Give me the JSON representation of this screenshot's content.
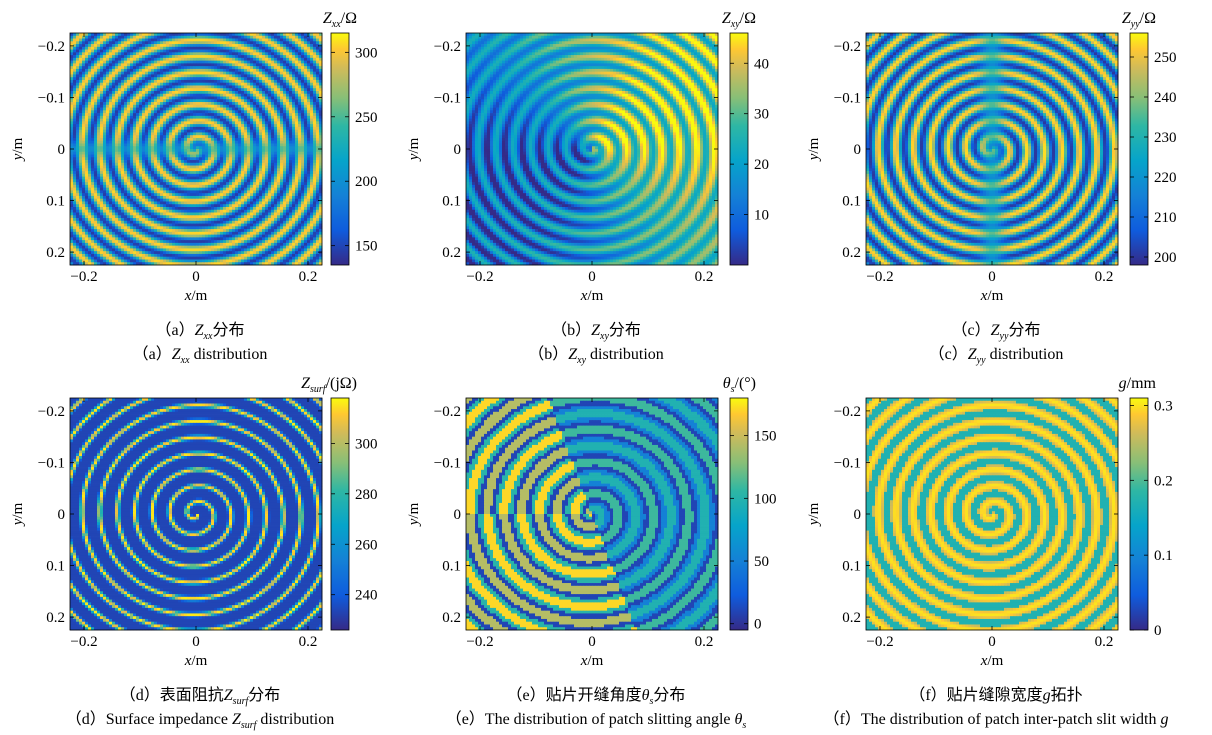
{
  "chart_data": [
    {
      "type": "heatmap",
      "colorbar_title": {
        "base": "Z",
        "sub": "xx",
        "suffix": "/Ω"
      },
      "xlabel": {
        "italic": "x",
        "suffix": "/m"
      },
      "ylabel": {
        "italic": "y",
        "suffix": "/m"
      },
      "xlim": [
        -0.225,
        0.225
      ],
      "ylim": [
        -0.225,
        0.225
      ],
      "y_reversed": true,
      "xticks": [
        -0.2,
        0,
        0.2
      ],
      "xtick_labels": [
        "−0.2",
        "0",
        "0.2"
      ],
      "yticks": [
        -0.2,
        -0.1,
        0,
        0.1,
        0.2
      ],
      "ytick_labels": [
        "−0.2",
        "−0.1",
        "0",
        "0.1",
        "0.2"
      ],
      "clim": [
        135,
        315
      ],
      "cticks": [
        150,
        200,
        250,
        300
      ],
      "ctick_labels": [
        "150",
        "200",
        "250",
        "300"
      ],
      "pattern": "spiral",
      "caption_cn": {
        "pre": "（a）",
        "base": "Z",
        "sub": "xx",
        "post": "分布"
      },
      "caption_en": {
        "pre": "（a）",
        "base": "Z",
        "sub": "xx",
        "post": " distribution"
      }
    },
    {
      "type": "heatmap",
      "colorbar_title": {
        "base": "Z",
        "sub": "xy",
        "suffix": "/Ω"
      },
      "xlabel": {
        "italic": "x",
        "suffix": "/m"
      },
      "ylabel": {
        "italic": "y",
        "suffix": "/m"
      },
      "xlim": [
        -0.225,
        0.225
      ],
      "ylim": [
        -0.225,
        0.225
      ],
      "y_reversed": true,
      "xticks": [
        -0.2,
        0,
        0.2
      ],
      "xtick_labels": [
        "−0.2",
        "0",
        "0.2"
      ],
      "yticks": [
        -0.2,
        -0.1,
        0,
        0.1,
        0.2
      ],
      "ytick_labels": [
        "−0.2",
        "−0.1",
        "0",
        "0.1",
        "0.2"
      ],
      "clim": [
        0,
        46
      ],
      "cticks": [
        10,
        20,
        30,
        40
      ],
      "ctick_labels": [
        "10",
        "20",
        "30",
        "40"
      ],
      "pattern": "spiral-angle",
      "caption_cn": {
        "pre": "（b）",
        "base": "Z",
        "sub": "xy",
        "post": "分布"
      },
      "caption_en": {
        "pre": "（b）",
        "base": "Z",
        "sub": "xy",
        "post": " distribution"
      }
    },
    {
      "type": "heatmap",
      "colorbar_title": {
        "base": "Z",
        "sub": "yy",
        "suffix": "/Ω"
      },
      "xlabel": {
        "italic": "x",
        "suffix": "/m"
      },
      "ylabel": {
        "italic": "y",
        "suffix": "/m"
      },
      "xlim": [
        -0.225,
        0.225
      ],
      "ylim": [
        -0.225,
        0.225
      ],
      "y_reversed": true,
      "xticks": [
        -0.2,
        0,
        0.2
      ],
      "xtick_labels": [
        "−0.2",
        "0",
        "0.2"
      ],
      "yticks": [
        -0.2,
        -0.1,
        0,
        0.1,
        0.2
      ],
      "ytick_labels": [
        "−0.2",
        "−0.1",
        "0",
        "0.1",
        "0.2"
      ],
      "clim": [
        198,
        256
      ],
      "cticks": [
        200,
        210,
        220,
        230,
        240,
        250
      ],
      "ctick_labels": [
        "200",
        "210",
        "220",
        "230",
        "240",
        "250"
      ],
      "pattern": "spiral-vertical",
      "caption_cn": {
        "pre": "（c）",
        "base": "Z",
        "sub": "yy",
        "post": "分布"
      },
      "caption_en": {
        "pre": "（c）",
        "base": "Z",
        "sub": "yy",
        "post": " distribution"
      }
    },
    {
      "type": "heatmap",
      "colorbar_title": {
        "base": "Z",
        "sub": "surf",
        "suffix": "/(jΩ)"
      },
      "xlabel": {
        "italic": "x",
        "suffix": "/m"
      },
      "ylabel": {
        "italic": "y",
        "suffix": "/m"
      },
      "xlim": [
        -0.225,
        0.225
      ],
      "ylim": [
        -0.225,
        0.225
      ],
      "y_reversed": true,
      "xticks": [
        -0.2,
        0,
        0.2
      ],
      "xtick_labels": [
        "−0.2",
        "0",
        "0.2"
      ],
      "yticks": [
        -0.2,
        -0.1,
        0,
        0.1,
        0.2
      ],
      "ytick_labels": [
        "−0.2",
        "−0.1",
        "0",
        "0.1",
        "0.2"
      ],
      "clim": [
        226,
        318
      ],
      "cticks": [
        240,
        260,
        280,
        300
      ],
      "ctick_labels": [
        "240",
        "260",
        "280",
        "300"
      ],
      "pattern": "spiral-thin",
      "caption_cn": {
        "pre": "（d）表面阻抗",
        "base": "Z",
        "sub": "surf",
        "post": "分布"
      },
      "caption_en": {
        "pre": "（d）Surface impedance ",
        "base": "Z",
        "sub": "surf",
        "post": " distribution"
      }
    },
    {
      "type": "heatmap",
      "colorbar_title": {
        "base": "θ",
        "sub": "s",
        "suffix": "/(°)"
      },
      "xlabel": {
        "italic": "x",
        "suffix": "/m"
      },
      "ylabel": {
        "italic": "y",
        "suffix": "/m"
      },
      "xlim": [
        -0.225,
        0.225
      ],
      "ylim": [
        -0.225,
        0.225
      ],
      "y_reversed": true,
      "xticks": [
        -0.2,
        0,
        0.2
      ],
      "xtick_labels": [
        "−0.2",
        "0",
        "0.2"
      ],
      "yticks": [
        -0.2,
        -0.1,
        0,
        0.1,
        0.2
      ],
      "ytick_labels": [
        "−0.2",
        "−0.1",
        "0",
        "0.1",
        "0.2"
      ],
      "clim": [
        -5,
        180
      ],
      "cticks": [
        0,
        50,
        100,
        150
      ],
      "ctick_labels": [
        "0",
        "50",
        "100",
        "150"
      ],
      "pattern": "quantized-angle",
      "caption_cn": {
        "pre": "（e）贴片开缝角度",
        "base": "θ",
        "sub": "s",
        "post": "分布"
      },
      "caption_en": {
        "pre": "（e）The distribution of patch slitting angle ",
        "base": "θ",
        "sub": "s",
        "post": ""
      }
    },
    {
      "type": "heatmap",
      "colorbar_title": {
        "base": "g",
        "sub": "",
        "suffix": "/mm"
      },
      "xlabel": {
        "italic": "x",
        "suffix": "/m"
      },
      "ylabel": {
        "italic": "y",
        "suffix": "/m"
      },
      "xlim": [
        -0.225,
        0.225
      ],
      "ylim": [
        -0.225,
        0.225
      ],
      "y_reversed": true,
      "xticks": [
        -0.2,
        0,
        0.2
      ],
      "xtick_labels": [
        "−0.2",
        "0",
        "0.2"
      ],
      "yticks": [
        -0.2,
        -0.1,
        0,
        0.1,
        0.2
      ],
      "ytick_labels": [
        "−0.2",
        "−0.1",
        "0",
        "0.1",
        "0.2"
      ],
      "clim": [
        0,
        0.31
      ],
      "cticks": [
        0,
        0.1,
        0.2,
        0.3
      ],
      "ctick_labels": [
        "0",
        "0.1",
        "0.2",
        "0.3"
      ],
      "pattern": "spiral-gap",
      "caption_cn": {
        "pre": "（f）贴片缝隙宽度",
        "base": "g",
        "sub": "",
        "post": "拓扑"
      },
      "caption_en": {
        "pre": "（f）The distribution of patch inter-patch slit width ",
        "base": "g",
        "sub": "",
        "post": ""
      }
    }
  ]
}
